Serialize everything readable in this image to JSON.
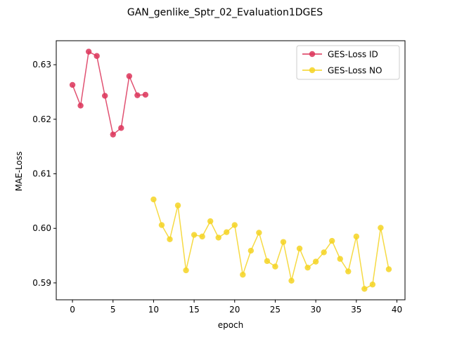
{
  "chart_data": {
    "type": "line",
    "title": "GAN_genlike_Sptr_02_Evaluation1DGES",
    "xlabel": "epoch",
    "ylabel": "MAE-Loss",
    "xlim": [
      -2,
      41
    ],
    "ylim": [
      0.5869,
      0.6344
    ],
    "xticks": [
      0,
      5,
      10,
      15,
      20,
      25,
      30,
      35,
      40
    ],
    "yticks": [
      0.59,
      0.6,
      0.61,
      0.62,
      0.63
    ],
    "ytick_labels": [
      "0.59",
      "0.60",
      "0.61",
      "0.62",
      "0.63"
    ],
    "grid": false,
    "legend_position": "top-right",
    "series": [
      {
        "name": "GES-Loss ID",
        "color": "#dc3459",
        "x": [
          0,
          1,
          2,
          3,
          4,
          5,
          6,
          7,
          8,
          9
        ],
        "values": [
          0.6263,
          0.6225,
          0.6324,
          0.6316,
          0.6243,
          0.6172,
          0.6184,
          0.6279,
          0.6244,
          0.6245
        ]
      },
      {
        "name": "GES-Loss NO",
        "color": "#f5d423",
        "x": [
          10,
          11,
          12,
          13,
          14,
          15,
          16,
          17,
          18,
          19,
          20,
          21,
          22,
          23,
          24,
          25,
          26,
          27,
          28,
          29,
          30,
          31,
          32,
          33,
          34,
          35,
          36,
          37,
          38,
          39
        ],
        "values": [
          0.6053,
          0.6006,
          0.598,
          0.6042,
          0.5923,
          0.5988,
          0.5985,
          0.6013,
          0.5983,
          0.5993,
          0.6006,
          0.5915,
          0.5959,
          0.5992,
          0.594,
          0.593,
          0.5975,
          0.5904,
          0.5963,
          0.5928,
          0.5939,
          0.5956,
          0.5977,
          0.5944,
          0.5921,
          0.5985,
          0.5889,
          0.5897,
          0.6001,
          0.5925
        ]
      }
    ]
  }
}
